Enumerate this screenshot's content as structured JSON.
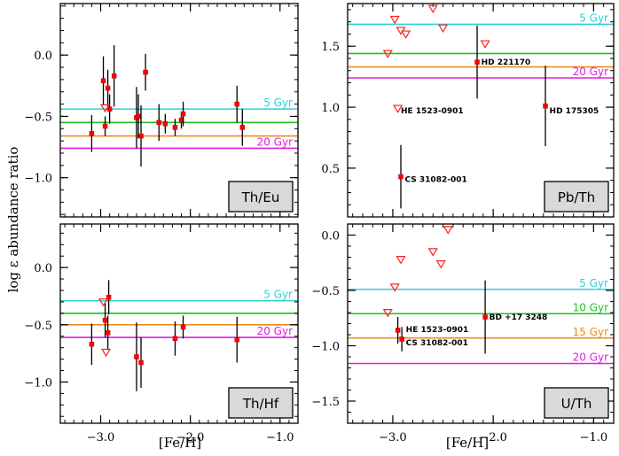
{
  "figure": {
    "ylabel": "log ε abundance ratio",
    "xlabel": "[Fe/H]"
  },
  "chart_data": [
    {
      "type": "scatter",
      "panel": "Th/Eu",
      "label": "Th/Eu",
      "xlim": [
        -3.45,
        -0.8
      ],
      "ylim": [
        -1.32,
        0.42
      ],
      "yticks": [
        -1.0,
        -0.5,
        0.0
      ],
      "ytick_labels": [
        "−1.0",
        "−0.5",
        "0.0"
      ],
      "xticks": [
        -3.0,
        -2.0,
        -1.0
      ],
      "xtick_labels": [
        "",
        "",
        ""
      ],
      "hlines": [
        {
          "label": "5 Gyr",
          "y": -0.44,
          "color": "#2fd0d8"
        },
        {
          "label": "",
          "y": -0.55,
          "color": "#22c022"
        },
        {
          "label": "",
          "y": -0.66,
          "color": "#f08a1c"
        },
        {
          "label": "20 Gyr",
          "y": -0.76,
          "color": "#e01ee0"
        }
      ],
      "points": [
        {
          "x": -3.1,
          "y": -0.64,
          "err": 0.15,
          "marker": "square"
        },
        {
          "x": -2.97,
          "y": -0.21,
          "err": 0.2,
          "marker": "square"
        },
        {
          "x": -2.95,
          "y": -0.58,
          "err": 0.08,
          "marker": "square"
        },
        {
          "x": -2.92,
          "y": -0.27,
          "err": 0.15,
          "marker": "square"
        },
        {
          "x": -2.9,
          "y": -0.44,
          "err": 0.12,
          "marker": "square"
        },
        {
          "x": -2.85,
          "y": -0.17,
          "err": 0.25,
          "marker": "square"
        },
        {
          "x": -2.6,
          "y": -0.51,
          "err": 0.25,
          "marker": "square"
        },
        {
          "x": -2.58,
          "y": -0.5,
          "err": 0.18,
          "marker": "square"
        },
        {
          "x": -2.55,
          "y": -0.66,
          "err": 0.25,
          "marker": "square"
        },
        {
          "x": -2.5,
          "y": -0.14,
          "err": 0.15,
          "marker": "square"
        },
        {
          "x": -2.35,
          "y": -0.55,
          "err": 0.15,
          "marker": "square"
        },
        {
          "x": -2.28,
          "y": -0.56,
          "err": 0.08,
          "marker": "square"
        },
        {
          "x": -2.17,
          "y": -0.59,
          "err": 0.07,
          "marker": "square"
        },
        {
          "x": -2.1,
          "y": -0.53,
          "err": 0.07,
          "marker": "square"
        },
        {
          "x": -2.08,
          "y": -0.48,
          "err": 0.1,
          "marker": "square"
        },
        {
          "x": -1.48,
          "y": -0.4,
          "err": 0.15,
          "marker": "square"
        },
        {
          "x": -1.42,
          "y": -0.59,
          "err": 0.15,
          "marker": "square"
        },
        {
          "x": -2.95,
          "y": -0.43,
          "err": 0,
          "marker": "triangle"
        }
      ],
      "annotations": []
    },
    {
      "type": "scatter",
      "panel": "Pb/Th",
      "label": "Pb/Th",
      "xlim": [
        -3.45,
        -0.8
      ],
      "ylim": [
        0.1,
        1.85
      ],
      "yticks": [
        0.5,
        1.0,
        1.5
      ],
      "ytick_labels": [
        "0.5",
        "1.0",
        "1.5"
      ],
      "xticks": [
        -3.0,
        -2.0,
        -1.0
      ],
      "xtick_labels": [
        "",
        "",
        ""
      ],
      "hlines": [
        {
          "label": "5 Gyr",
          "y": 1.68,
          "color": "#2fd0d8"
        },
        {
          "label": "",
          "y": 1.44,
          "color": "#22c022"
        },
        {
          "label": "",
          "y": 1.33,
          "color": "#f08a1c"
        },
        {
          "label": "20 Gyr",
          "y": 1.24,
          "color": "#e01ee0"
        }
      ],
      "points": [
        {
          "x": -3.05,
          "y": 1.44,
          "err": 0,
          "marker": "triangle"
        },
        {
          "x": -2.98,
          "y": 1.72,
          "err": 0,
          "marker": "triangle"
        },
        {
          "x": -2.92,
          "y": 1.63,
          "err": 0,
          "marker": "triangle"
        },
        {
          "x": -2.87,
          "y": 1.6,
          "err": 0,
          "marker": "triangle"
        },
        {
          "x": -2.6,
          "y": 1.81,
          "err": 0,
          "marker": "triangle"
        },
        {
          "x": -2.5,
          "y": 1.65,
          "err": 0,
          "marker": "triangle"
        },
        {
          "x": -2.08,
          "y": 1.52,
          "err": 0,
          "marker": "triangle"
        },
        {
          "x": -2.95,
          "y": 0.99,
          "err": 0,
          "marker": "triangle"
        },
        {
          "x": -2.16,
          "y": 1.37,
          "err": 0.3,
          "marker": "square"
        },
        {
          "x": -1.48,
          "y": 1.01,
          "err": 0.33,
          "marker": "square"
        },
        {
          "x": -2.92,
          "y": 0.43,
          "err": 0.26,
          "marker": "square"
        }
      ],
      "annotations": [
        {
          "text": "HD 221170",
          "x": -2.12,
          "y": 1.37
        },
        {
          "text": "HE 1523-0901",
          "x": -2.92,
          "y": 0.97
        },
        {
          "text": "HD 175305",
          "x": -1.44,
          "y": 0.97
        },
        {
          "text": "CS 31082-001",
          "x": -2.88,
          "y": 0.41
        }
      ]
    },
    {
      "type": "scatter",
      "panel": "Th/Hf",
      "label": "Th/Hf",
      "xlim": [
        -3.45,
        -0.8
      ],
      "ylim": [
        -1.36,
        0.38
      ],
      "yticks": [
        -1.0,
        -0.5,
        0.0
      ],
      "ytick_labels": [
        "−1.0",
        "−0.5",
        "0.0"
      ],
      "xticks": [
        -3.0,
        -2.0,
        -1.0
      ],
      "xtick_labels": [
        "−3.0",
        "−2.0",
        "−1.0"
      ],
      "hlines": [
        {
          "label": "5 Gyr",
          "y": -0.29,
          "color": "#2fd0d8"
        },
        {
          "label": "",
          "y": -0.4,
          "color": "#22c022"
        },
        {
          "label": "",
          "y": -0.5,
          "color": "#f08a1c"
        },
        {
          "label": "20 Gyr",
          "y": -0.61,
          "color": "#e01ee0"
        }
      ],
      "points": [
        {
          "x": -3.1,
          "y": -0.67,
          "err": 0.18,
          "marker": "square"
        },
        {
          "x": -2.95,
          "y": -0.46,
          "err": 0.15,
          "marker": "square"
        },
        {
          "x": -2.92,
          "y": -0.57,
          "err": 0.15,
          "marker": "square"
        },
        {
          "x": -2.91,
          "y": -0.26,
          "err": 0.15,
          "marker": "square"
        },
        {
          "x": -2.6,
          "y": -0.78,
          "err": 0.3,
          "marker": "square"
        },
        {
          "x": -2.55,
          "y": -0.83,
          "err": 0.22,
          "marker": "square"
        },
        {
          "x": -2.17,
          "y": -0.62,
          "err": 0.15,
          "marker": "square"
        },
        {
          "x": -2.08,
          "y": -0.52,
          "err": 0.1,
          "marker": "square"
        },
        {
          "x": -1.48,
          "y": -0.63,
          "err": 0.2,
          "marker": "square"
        },
        {
          "x": -2.97,
          "y": -0.3,
          "err": 0,
          "marker": "triangle"
        },
        {
          "x": -2.94,
          "y": -0.74,
          "err": 0,
          "marker": "triangle"
        }
      ],
      "annotations": []
    },
    {
      "type": "scatter",
      "panel": "U/Th",
      "label": "U/Th",
      "xlim": [
        -3.45,
        -0.8
      ],
      "ylim": [
        -1.7,
        0.1
      ],
      "yticks": [
        -1.5,
        -1.0,
        -0.5,
        0.0
      ],
      "ytick_labels": [
        "−1.5",
        "−1.0",
        "−0.5",
        "0.0"
      ],
      "xticks": [
        -3.0,
        -2.0,
        -1.0
      ],
      "xtick_labels": [
        "−3.0",
        "−2.0",
        "−1.0"
      ],
      "hlines": [
        {
          "label": "5 Gyr",
          "y": -0.49,
          "color": "#2fd0d8"
        },
        {
          "label": "10 Gyr",
          "y": -0.71,
          "color": "#22c022"
        },
        {
          "label": "15 Gyr",
          "y": -0.93,
          "color": "#f08a1c"
        },
        {
          "label": "20 Gyr",
          "y": -1.16,
          "color": "#e01ee0"
        }
      ],
      "points": [
        {
          "x": -3.05,
          "y": -0.7,
          "err": 0,
          "marker": "triangle"
        },
        {
          "x": -2.98,
          "y": -0.47,
          "err": 0,
          "marker": "triangle"
        },
        {
          "x": -2.92,
          "y": -0.22,
          "err": 0,
          "marker": "triangle"
        },
        {
          "x": -2.6,
          "y": -0.15,
          "err": 0,
          "marker": "triangle"
        },
        {
          "x": -2.52,
          "y": -0.26,
          "err": 0,
          "marker": "triangle"
        },
        {
          "x": -2.45,
          "y": 0.05,
          "err": 0,
          "marker": "triangle"
        },
        {
          "x": -2.95,
          "y": -0.86,
          "err": 0.12,
          "marker": "square"
        },
        {
          "x": -2.91,
          "y": -0.94,
          "err": 0.11,
          "marker": "square"
        },
        {
          "x": -2.08,
          "y": -0.74,
          "err": 0.33,
          "marker": "square"
        }
      ],
      "annotations": [
        {
          "text": "HE 1523-0901",
          "x": -2.87,
          "y": -0.85
        },
        {
          "text": "CS 31082-001",
          "x": -2.87,
          "y": -0.97
        },
        {
          "text": "BD +17 3248",
          "x": -2.04,
          "y": -0.74
        }
      ]
    }
  ]
}
